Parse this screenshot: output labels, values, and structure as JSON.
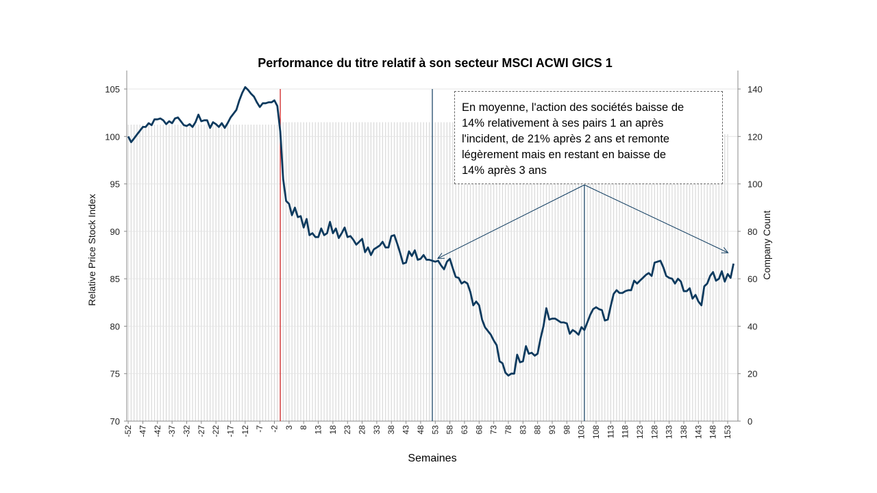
{
  "chart_data": {
    "type": "line",
    "title": "Performance du titre relatif à son secteur MSCI ACWI GICS 1",
    "xlabel": "Semaines",
    "ylabel": "Relative Price Stock Index",
    "y2label": "Company Count",
    "xlim": [
      -52,
      156
    ],
    "ylim": [
      70,
      105
    ],
    "y2lim": [
      0,
      140
    ],
    "yticks": [
      70,
      75,
      80,
      85,
      90,
      95,
      100,
      105
    ],
    "y2ticks": [
      0,
      20,
      40,
      60,
      80,
      100,
      120,
      140
    ],
    "xticks": [
      "-52",
      "-47",
      "-42",
      "-37",
      "-32",
      "-27",
      "-22",
      "-17",
      "-12",
      "-7",
      "-2",
      "3",
      "8",
      "13",
      "18",
      "23",
      "28",
      "33",
      "38",
      "43",
      "48",
      "53",
      "58",
      "63",
      "68",
      "73",
      "78",
      "83",
      "88",
      "93",
      "98",
      "103",
      "108",
      "113",
      "118",
      "123",
      "128",
      "133",
      "138",
      "143",
      "148",
      "153"
    ],
    "grid": "horizontal",
    "series": [
      {
        "role": "relative-price",
        "color": "#0d3a5e",
        "points": [
          [
            -52,
            100.0
          ],
          [
            -51,
            99.4
          ],
          [
            -50,
            99.8
          ],
          [
            -49,
            100.2
          ],
          [
            -48,
            100.6
          ],
          [
            -47,
            101.0
          ],
          [
            -46,
            101.0
          ],
          [
            -45,
            101.4
          ],
          [
            -44,
            101.2
          ],
          [
            -43,
            101.8
          ],
          [
            -42,
            101.8
          ],
          [
            -41,
            101.9
          ],
          [
            -40,
            101.7
          ],
          [
            -39,
            101.3
          ],
          [
            -38,
            101.6
          ],
          [
            -37,
            101.4
          ],
          [
            -36,
            101.9
          ],
          [
            -35,
            102.0
          ],
          [
            -34,
            101.6
          ],
          [
            -33,
            101.2
          ],
          [
            -32,
            101.1
          ],
          [
            -31,
            101.3
          ],
          [
            -30,
            101.0
          ],
          [
            -29,
            101.5
          ],
          [
            -28,
            102.3
          ],
          [
            -27,
            101.6
          ],
          [
            -26,
            101.7
          ],
          [
            -25,
            101.7
          ],
          [
            -24,
            100.9
          ],
          [
            -23,
            101.5
          ],
          [
            -22,
            101.3
          ],
          [
            -21,
            101.0
          ],
          [
            -20,
            101.4
          ],
          [
            -19,
            100.9
          ],
          [
            -18,
            101.4
          ],
          [
            -17,
            102.0
          ],
          [
            -16,
            102.4
          ],
          [
            -15,
            102.8
          ],
          [
            -14,
            103.8
          ],
          [
            -13,
            104.6
          ],
          [
            -12,
            105.2
          ],
          [
            -11,
            104.9
          ],
          [
            -10,
            104.5
          ],
          [
            -9,
            104.2
          ],
          [
            -8,
            103.6
          ],
          [
            -7,
            103.1
          ],
          [
            -6,
            103.5
          ],
          [
            -5,
            103.5
          ],
          [
            -4,
            103.6
          ],
          [
            -3,
            103.6
          ],
          [
            -2,
            103.8
          ],
          [
            -1,
            103.2
          ],
          [
            0,
            100.5
          ],
          [
            1,
            95.5
          ],
          [
            2,
            93.2
          ],
          [
            3,
            92.9
          ],
          [
            4,
            91.7
          ],
          [
            5,
            92.5
          ],
          [
            6,
            91.5
          ],
          [
            7,
            91.6
          ],
          [
            8,
            90.4
          ],
          [
            9,
            91.3
          ],
          [
            10,
            89.6
          ],
          [
            11,
            89.8
          ],
          [
            12,
            89.4
          ],
          [
            13,
            89.4
          ],
          [
            14,
            90.3
          ],
          [
            15,
            89.6
          ],
          [
            16,
            89.8
          ],
          [
            17,
            91.0
          ],
          [
            18,
            89.8
          ],
          [
            19,
            90.3
          ],
          [
            20,
            89.3
          ],
          [
            21,
            89.8
          ],
          [
            22,
            90.4
          ],
          [
            23,
            89.4
          ],
          [
            24,
            89.5
          ],
          [
            25,
            89.1
          ],
          [
            26,
            88.6
          ],
          [
            27,
            88.9
          ],
          [
            28,
            89.2
          ],
          [
            29,
            87.8
          ],
          [
            30,
            88.3
          ],
          [
            31,
            87.5
          ],
          [
            32,
            88.1
          ],
          [
            33,
            88.3
          ],
          [
            34,
            88.5
          ],
          [
            35,
            88.9
          ],
          [
            36,
            88.3
          ],
          [
            37,
            88.3
          ],
          [
            38,
            89.5
          ],
          [
            39,
            89.6
          ],
          [
            40,
            88.7
          ],
          [
            41,
            87.7
          ],
          [
            42,
            86.6
          ],
          [
            43,
            86.7
          ],
          [
            44,
            87.9
          ],
          [
            45,
            87.4
          ],
          [
            46,
            88.0
          ],
          [
            47,
            87.0
          ],
          [
            48,
            87.1
          ],
          [
            49,
            87.5
          ],
          [
            50,
            87.0
          ],
          [
            51,
            87.0
          ],
          [
            52,
            86.9
          ],
          [
            53,
            86.8
          ],
          [
            54,
            86.9
          ],
          [
            55,
            86.4
          ],
          [
            56,
            86.0
          ],
          [
            57,
            86.8
          ],
          [
            58,
            87.1
          ],
          [
            59,
            86.1
          ],
          [
            60,
            85.2
          ],
          [
            61,
            85.1
          ],
          [
            62,
            84.5
          ],
          [
            63,
            84.7
          ],
          [
            64,
            84.5
          ],
          [
            65,
            83.6
          ],
          [
            66,
            82.2
          ],
          [
            67,
            82.6
          ],
          [
            68,
            82.2
          ],
          [
            69,
            80.7
          ],
          [
            70,
            79.9
          ],
          [
            71,
            79.5
          ],
          [
            72,
            79.1
          ],
          [
            73,
            78.5
          ],
          [
            74,
            78.0
          ],
          [
            75,
            76.3
          ],
          [
            76,
            76.1
          ],
          [
            77,
            75.1
          ],
          [
            78,
            74.8
          ],
          [
            79,
            75.0
          ],
          [
            80,
            75.0
          ],
          [
            81,
            77.0
          ],
          [
            82,
            76.2
          ],
          [
            83,
            76.3
          ],
          [
            84,
            77.9
          ],
          [
            85,
            77.1
          ],
          [
            86,
            77.2
          ],
          [
            87,
            76.9
          ],
          [
            88,
            77.1
          ],
          [
            89,
            78.7
          ],
          [
            90,
            80.0
          ],
          [
            91,
            81.9
          ],
          [
            92,
            80.7
          ],
          [
            93,
            80.8
          ],
          [
            94,
            80.8
          ],
          [
            95,
            80.6
          ],
          [
            96,
            80.4
          ],
          [
            97,
            80.4
          ],
          [
            98,
            80.3
          ],
          [
            99,
            79.2
          ],
          [
            100,
            79.6
          ],
          [
            101,
            79.4
          ],
          [
            102,
            79.1
          ],
          [
            103,
            79.9
          ],
          [
            104,
            79.6
          ],
          [
            105,
            80.4
          ],
          [
            106,
            81.2
          ],
          [
            107,
            81.8
          ],
          [
            108,
            82.0
          ],
          [
            109,
            81.8
          ],
          [
            110,
            81.7
          ],
          [
            111,
            80.6
          ],
          [
            112,
            80.7
          ],
          [
            113,
            82.1
          ],
          [
            114,
            83.4
          ],
          [
            115,
            83.8
          ],
          [
            116,
            83.5
          ],
          [
            117,
            83.5
          ],
          [
            118,
            83.7
          ],
          [
            119,
            83.8
          ],
          [
            120,
            83.8
          ],
          [
            121,
            84.8
          ],
          [
            122,
            84.5
          ],
          [
            123,
            84.8
          ],
          [
            124,
            85.1
          ],
          [
            125,
            85.4
          ],
          [
            126,
            85.6
          ],
          [
            127,
            85.3
          ],
          [
            128,
            86.7
          ],
          [
            129,
            86.8
          ],
          [
            130,
            86.9
          ],
          [
            131,
            86.2
          ],
          [
            132,
            85.3
          ],
          [
            133,
            85.1
          ],
          [
            134,
            85.0
          ],
          [
            135,
            84.5
          ],
          [
            136,
            85.0
          ],
          [
            137,
            84.7
          ],
          [
            138,
            83.7
          ],
          [
            139,
            83.7
          ],
          [
            140,
            84.0
          ],
          [
            141,
            82.9
          ],
          [
            142,
            83.3
          ],
          [
            143,
            82.6
          ],
          [
            144,
            82.2
          ],
          [
            145,
            84.2
          ],
          [
            146,
            84.5
          ],
          [
            147,
            85.3
          ],
          [
            148,
            85.7
          ],
          [
            149,
            84.8
          ],
          [
            150,
            85.0
          ],
          [
            151,
            85.8
          ],
          [
            152,
            84.7
          ],
          [
            153,
            85.5
          ],
          [
            154,
            85.1
          ],
          [
            155,
            86.6
          ]
        ]
      },
      {
        "role": "company-count",
        "type": "bar",
        "color": "#d9d9d9",
        "segments": [
          {
            "from": -52,
            "to": -1,
            "value": 125
          },
          {
            "from": 0,
            "to": 51,
            "value": 126
          },
          {
            "from": 52,
            "to": 103,
            "value": 126
          },
          {
            "from": 104,
            "to": 153,
            "value": 121
          },
          {
            "from": 154,
            "to": 155,
            "value": 0
          }
        ]
      }
    ],
    "reference_lines": [
      {
        "x": 0,
        "color": "#cc1111"
      },
      {
        "x": 52,
        "color": "#0d3a5e"
      },
      {
        "x": 104,
        "color": "#0d3a5e"
      }
    ],
    "annotation": {
      "lines": [
        "En moyenne, l'action des sociétés baisse de",
        "14% relativement à ses pairs 1 an après",
        "l'incident, de 21% après 2 ans et remonte",
        "légèrement mais en restant en baisse de",
        "14% après 3 ans"
      ],
      "arrow_targets": [
        [
          52,
          87.0
        ],
        [
          155,
          87.6
        ]
      ],
      "arrow_origin_week": 104
    }
  }
}
